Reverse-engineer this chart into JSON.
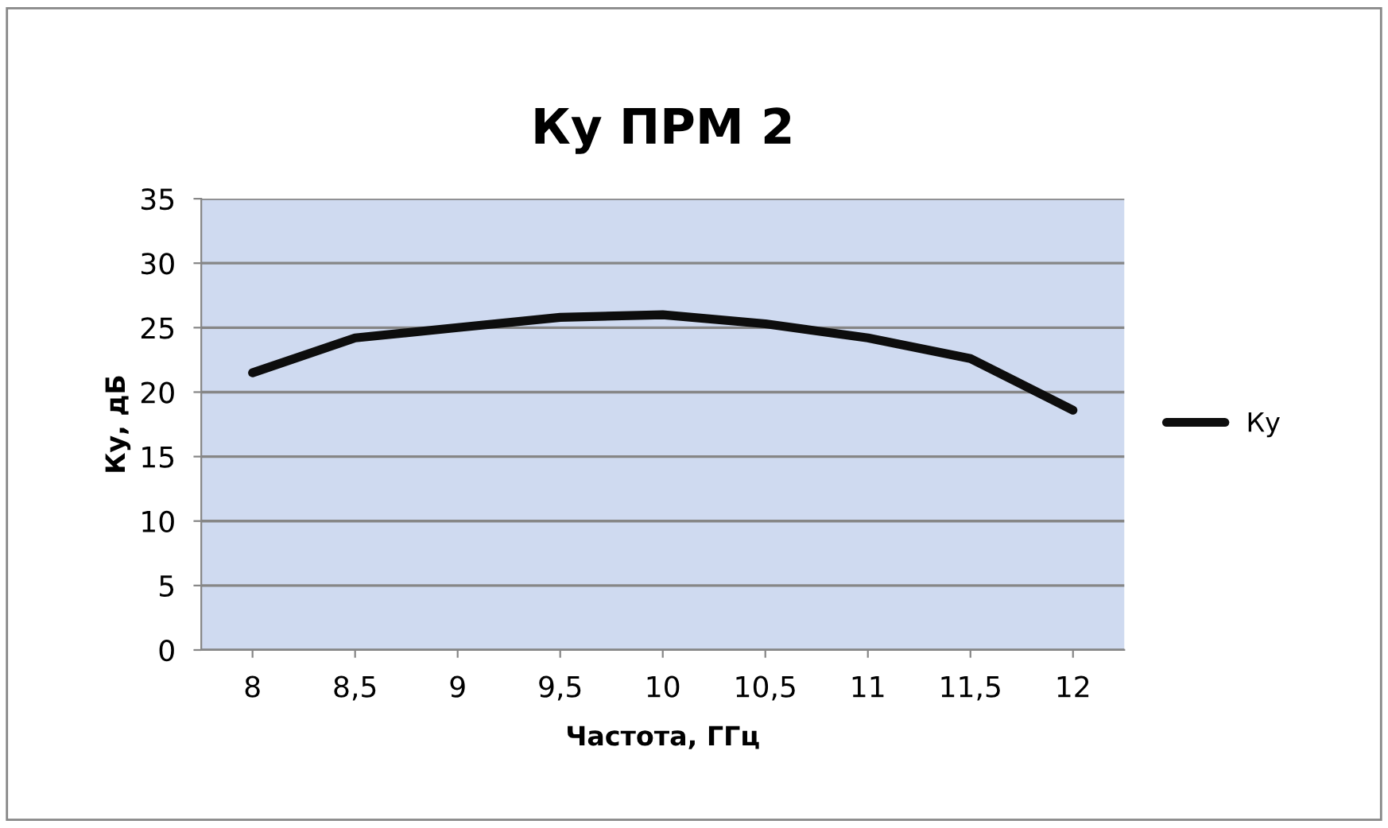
{
  "chart_data": {
    "type": "line",
    "title": "Ку ПРМ 2",
    "xlabel": "Частота, ГГц",
    "ylabel": "Ку, дБ",
    "categories": [
      "8",
      "8,5",
      "9",
      "9,5",
      "10",
      "10,5",
      "11",
      "11,5",
      "12"
    ],
    "series": [
      {
        "name": "Ку",
        "color": "#0d0d0d",
        "values": [
          21.5,
          24.2,
          25.0,
          25.8,
          26.0,
          25.3,
          24.2,
          22.6,
          18.6
        ]
      }
    ],
    "ylim": [
      0,
      35
    ],
    "yticks": [
      0,
      5,
      10,
      15,
      20,
      25,
      30,
      35
    ],
    "grid": "y",
    "legend": "right",
    "marker": "none",
    "line_style": "solid"
  }
}
